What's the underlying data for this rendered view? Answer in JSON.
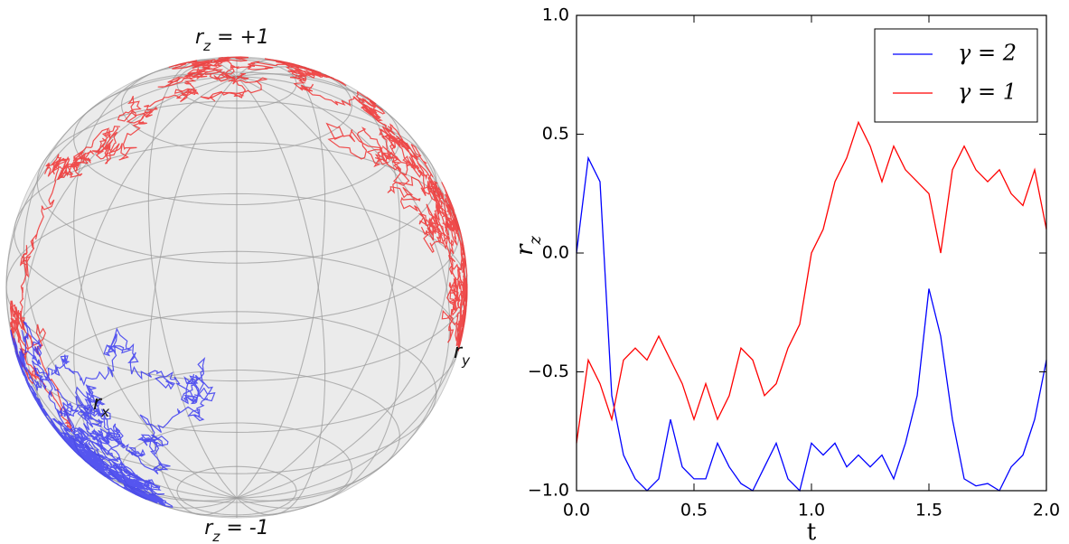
{
  "chart_data": [
    {
      "type": "sphere",
      "labels": [
        {
          "symbol": "r",
          "subscript": "z",
          "text": " = +1"
        },
        {
          "symbol": "r",
          "subscript": "z",
          "text": " = -1"
        },
        {
          "symbol": "r",
          "subscript": "x",
          "text": ""
        },
        {
          "symbol": "r",
          "subscript": "y",
          "text": ""
        }
      ],
      "series": [
        {
          "color": "#3b3bf0"
        },
        {
          "color": "#f03030"
        }
      ]
    },
    {
      "type": "line",
      "x": [
        0,
        0.05,
        0.1,
        0.15,
        0.2,
        0.25,
        0.3,
        0.35,
        0.4,
        0.45,
        0.5,
        0.55,
        0.6,
        0.65,
        0.7,
        0.75,
        0.8,
        0.85,
        0.9,
        0.95,
        1.0,
        1.05,
        1.1,
        1.15,
        1.2,
        1.25,
        1.3,
        1.35,
        1.4,
        1.45,
        1.5,
        1.55,
        1.6,
        1.65,
        1.7,
        1.75,
        1.8,
        1.85,
        1.9,
        1.95,
        2.0
      ],
      "series": [
        {
          "name": "γ = 2",
          "color": "#0000ff",
          "values": [
            0.0,
            0.4,
            0.3,
            -0.6,
            -0.85,
            -0.95,
            -1.0,
            -0.95,
            -0.7,
            -0.9,
            -0.95,
            -0.95,
            -0.8,
            -0.9,
            -0.97,
            -1.0,
            -0.9,
            -0.8,
            -0.95,
            -1.0,
            -0.8,
            -0.85,
            -0.8,
            -0.9,
            -0.85,
            -0.9,
            -0.85,
            -0.95,
            -0.8,
            -0.6,
            -0.15,
            -0.35,
            -0.7,
            -0.95,
            -0.98,
            -0.97,
            -1.0,
            -0.9,
            -0.85,
            -0.7,
            -0.45
          ]
        },
        {
          "name": "γ = 1",
          "color": "#ff0000",
          "values": [
            -0.8,
            -0.45,
            -0.55,
            -0.7,
            -0.45,
            -0.4,
            -0.45,
            -0.35,
            -0.45,
            -0.55,
            -0.7,
            -0.55,
            -0.7,
            -0.6,
            -0.4,
            -0.45,
            -0.6,
            -0.55,
            -0.4,
            -0.3,
            0.0,
            0.1,
            0.3,
            0.4,
            0.55,
            0.45,
            0.3,
            0.45,
            0.35,
            0.3,
            0.25,
            0.0,
            0.35,
            0.45,
            0.35,
            0.3,
            0.35,
            0.25,
            0.2,
            0.35,
            0.1
          ]
        }
      ],
      "xlabel": "t",
      "ylabel": {
        "symbol": "r",
        "subscript": "z"
      },
      "xlim": [
        0,
        2
      ],
      "ylim": [
        -1,
        1
      ],
      "xticks": [
        {
          "value": 0,
          "label": "0.0"
        },
        {
          "value": 0.5,
          "label": "0.5"
        },
        {
          "value": 1,
          "label": "1.0"
        },
        {
          "value": 1.5,
          "label": "1.5"
        },
        {
          "value": 2,
          "label": "2.0"
        }
      ],
      "yticks": [
        {
          "value": -1,
          "label": "−1.0"
        },
        {
          "value": -0.5,
          "label": "−0.5"
        },
        {
          "value": 0,
          "label": "0.0"
        },
        {
          "value": 0.5,
          "label": "0.5"
        },
        {
          "value": 1,
          "label": "1.0"
        }
      ],
      "legend": "upper right"
    }
  ]
}
